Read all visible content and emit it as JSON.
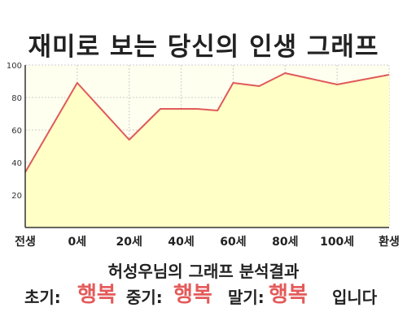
{
  "title": "재미로 보는 당신의 인생 그래프",
  "chart_data": {
    "type": "area",
    "categories": [
      "전생",
      "0세",
      "20세",
      "40세",
      "60세",
      "80세",
      "100세",
      "환생"
    ],
    "y_ticks": [
      "20",
      "40",
      "60",
      "80",
      "100"
    ],
    "ylim": [
      0,
      100
    ],
    "grid": true,
    "points": [
      {
        "x": 0,
        "y": 34
      },
      {
        "x": 1,
        "y": 89
      },
      {
        "x": 2,
        "y": 54
      },
      {
        "x": 2.6,
        "y": 73
      },
      {
        "x": 3.3,
        "y": 73
      },
      {
        "x": 3.7,
        "y": 72
      },
      {
        "x": 4,
        "y": 89
      },
      {
        "x": 4.5,
        "y": 87
      },
      {
        "x": 5,
        "y": 95
      },
      {
        "x": 6,
        "y": 88
      },
      {
        "x": 7,
        "y": 94
      }
    ],
    "colors": {
      "line": "#e05a5a",
      "fill": "#ffffc6",
      "grid": "#cccccc"
    }
  },
  "summary": {
    "line1": "허성우님의 그래프 분석결과",
    "early_label": "초기:",
    "early_value": "행복",
    "mid_label": "중기:",
    "mid_value": "행복",
    "late_label": "말기:",
    "late_value": "행복",
    "ending": "입니다"
  }
}
